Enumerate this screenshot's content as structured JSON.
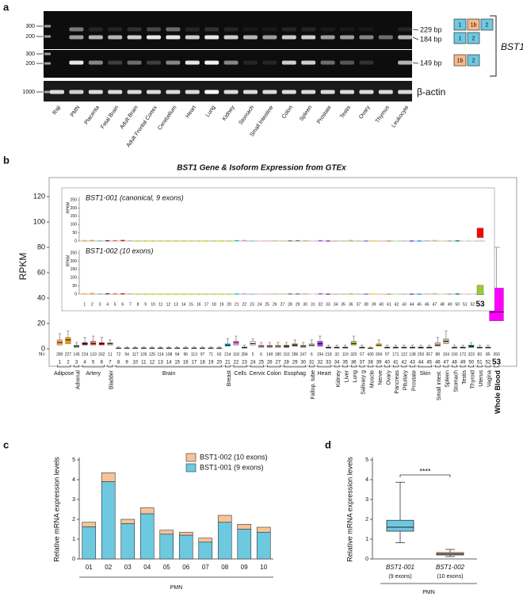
{
  "gel": {
    "panel_label": "a",
    "lanes": [
      "Raji",
      "PMN",
      "Placenta",
      "Fetal Brain",
      "Adult Brain",
      "Adult Frontal Cortex",
      "Cerebellum",
      "Heart",
      "Lung",
      "Kidney",
      "Stomach",
      "Small Intestine",
      "Colon",
      "Spleen",
      "Prostate",
      "Testis",
      "Ovary",
      "Thymus",
      "Leukocyte"
    ],
    "markers": [
      300,
      200,
      300,
      200,
      1000
    ],
    "band_labels": [
      "229 bp",
      "184 bp",
      "149 bp"
    ],
    "exons": [
      [
        "1",
        "1b",
        "2"
      ],
      [
        "1",
        "2"
      ],
      [
        "1b",
        "2"
      ]
    ],
    "gene": "BST1",
    "control": "β-actin"
  },
  "chart_data": [
    {
      "panel_label": "b",
      "type": "box",
      "title": "BST1 Gene & Isoform Expression from GTEx",
      "ylabel": "RPKM",
      "categories": [
        "1",
        "2",
        "3",
        "4",
        "5",
        "6",
        "7",
        "8",
        "9",
        "10",
        "11",
        "12",
        "13",
        "14",
        "15",
        "16",
        "17",
        "18",
        "19",
        "20",
        "21",
        "22",
        "23",
        "24",
        "25",
        "26",
        "27",
        "28",
        "29",
        "30",
        "31",
        "32",
        "33",
        "34",
        "35",
        "36",
        "37",
        "38",
        "39",
        "40",
        "41",
        "42",
        "43",
        "44",
        "45",
        "46",
        "47",
        "48",
        "49",
        "50",
        "51",
        "52",
        "53"
      ],
      "n_label": "N=",
      "n": [
        280,
        227,
        145,
        224,
        133,
        332,
        11,
        72,
        94,
        117,
        105,
        125,
        114,
        108,
        94,
        96,
        113,
        97,
        71,
        63,
        214,
        118,
        284,
        5,
        6,
        149,
        180,
        153,
        286,
        247,
        6,
        194,
        218,
        32,
        119,
        320,
        57,
        430,
        304,
        97,
        171,
        122,
        138,
        250,
        357,
        88,
        104,
        193,
        172,
        323,
        83,
        85,
        393
      ],
      "colors": [
        "#FFA54F",
        "#EE9A00",
        "#8FBC8F",
        "#8B1C62",
        "#EE6A50",
        "#FF0000",
        "#CDB79E",
        "#CDCD00",
        "#CDCD00",
        "#CDCD00",
        "#CDCD00",
        "#CDCD00",
        "#CDCD00",
        "#CDCD00",
        "#CDCD00",
        "#CDCD00",
        "#CDCD00",
        "#CDCD00",
        "#CDCD00",
        "#CDCD00",
        "#00CDCD",
        "#EE82EE",
        "#9AC0CD",
        "#EED5D2",
        "#FFB6C1",
        "#CDB79E",
        "#EEC591",
        "#8B7355",
        "#8B7355",
        "#CDAA7D",
        "#EED5D2",
        "#B23AEE",
        "#7A378B",
        "#CDB79E",
        "#CDB79E",
        "#9ACD32",
        "#CDB79E",
        "#7A67EE",
        "#FFD700",
        "#FFB6C1",
        "#CD9B1D",
        "#B4EEB4",
        "#BBBBBB",
        "#3A5FCD",
        "#1E90FF",
        "#CDB79E",
        "#CDB79E",
        "#FFD39B",
        "#A6A6A6",
        "#008B45",
        "#EED5D2",
        "#EED5D2",
        "#FF00FF"
      ],
      "median": [
        5,
        7,
        2,
        4,
        4,
        4,
        4,
        0.5,
        0.5,
        0.5,
        0.5,
        0.5,
        0.5,
        0.5,
        0.5,
        0.5,
        0.5,
        0.5,
        0.5,
        0.5,
        3,
        5,
        1,
        4,
        2,
        2,
        2,
        2,
        3,
        2,
        3,
        4,
        1,
        1,
        1,
        4,
        1,
        0.5,
        3,
        1,
        1,
        1,
        1,
        1,
        1,
        3,
        6,
        1,
        1,
        2,
        1,
        1,
        29
      ],
      "q1": [
        3,
        4,
        1,
        3,
        3,
        3,
        3,
        0.3,
        0.3,
        0.3,
        0.3,
        0.3,
        0.3,
        0.3,
        0.3,
        0.3,
        0.3,
        0.3,
        0.3,
        0.3,
        2,
        3,
        0.5,
        3,
        1,
        1,
        1,
        1,
        2,
        1,
        2,
        2,
        0.5,
        0.5,
        0.5,
        3,
        0.5,
        0.3,
        2,
        0.5,
        0.5,
        0.5,
        0.5,
        0.5,
        0.5,
        2,
        4,
        0.5,
        0.5,
        1,
        0.5,
        0.5,
        22
      ],
      "q3": [
        7,
        9,
        3,
        5,
        6,
        5,
        5,
        0.8,
        0.8,
        0.8,
        0.8,
        0.8,
        0.8,
        0.8,
        0.8,
        0.8,
        0.8,
        0.8,
        0.8,
        0.8,
        4,
        6,
        1.5,
        6,
        3,
        3,
        3,
        3,
        4,
        3,
        4,
        6,
        1.5,
        1.5,
        1.5,
        6,
        1.5,
        0.8,
        4,
        1.5,
        1.5,
        1.5,
        1.5,
        1.5,
        1.5,
        5,
        8,
        1.5,
        1.5,
        3,
        1.5,
        1.5,
        48
      ],
      "whisker_high": [
        12,
        14,
        5,
        9,
        10,
        9,
        7,
        1.5,
        1.5,
        1.5,
        1.5,
        1.5,
        1.5,
        1.5,
        1.5,
        1.5,
        1.5,
        1.5,
        1.5,
        1.5,
        8,
        10,
        3,
        8,
        5,
        5,
        5,
        5,
        7,
        5,
        7,
        10,
        3,
        3,
        3,
        10,
        3,
        1.5,
        7,
        3,
        3,
        3,
        3,
        3,
        3,
        9,
        14,
        3,
        3,
        5,
        3,
        3,
        80
      ],
      "ylim": [
        0,
        130
      ],
      "yticks": [
        0,
        20,
        40,
        60,
        80,
        100,
        120
      ],
      "groups": [
        {
          "label": "Adipose",
          "from": 1,
          "to": 2
        },
        {
          "label": "Adrenal",
          "from": 3,
          "to": 3
        },
        {
          "label": "Artery",
          "from": 4,
          "to": 6
        },
        {
          "label": "Bladder",
          "from": 7,
          "to": 7
        },
        {
          "label": "Brain",
          "from": 8,
          "to": 20
        },
        {
          "label": "Breast",
          "from": 21,
          "to": 21
        },
        {
          "label": "Cells",
          "from": 22,
          "to": 23
        },
        {
          "label": "Cervix",
          "from": 24,
          "to": 25
        },
        {
          "label": "Colon",
          "from": 26,
          "to": 27
        },
        {
          "label": "Esophag",
          "from": 28,
          "to": 30
        },
        {
          "label": "Fallop. tube",
          "from": 31,
          "to": 31
        },
        {
          "label": "Heart",
          "from": 32,
          "to": 33
        },
        {
          "label": "Kidney",
          "from": 34,
          "to": 34
        },
        {
          "label": "Liver",
          "from": 35,
          "to": 35
        },
        {
          "label": "Lung",
          "from": 36,
          "to": 36
        },
        {
          "label": "Salivary g",
          "from": 37,
          "to": 37
        },
        {
          "label": "Muscle",
          "from": 38,
          "to": 38
        },
        {
          "label": "Nerve",
          "from": 39,
          "to": 39
        },
        {
          "label": "Ovary",
          "from": 40,
          "to": 40
        },
        {
          "label": "Pancreas",
          "from": 41,
          "to": 41
        },
        {
          "label": "Pituitary",
          "from": 42,
          "to": 42
        },
        {
          "label": "Prostate",
          "from": 43,
          "to": 43
        },
        {
          "label": "Skin",
          "from": 44,
          "to": 45
        },
        {
          "label": "Small intest.",
          "from": 46,
          "to": 46
        },
        {
          "label": "Spleen",
          "from": 47,
          "to": 47
        },
        {
          "label": "Stomach",
          "from": 48,
          "to": 48
        },
        {
          "label": "Testis",
          "from": 49,
          "to": 49
        },
        {
          "label": "Thyroid",
          "from": 50,
          "to": 50
        },
        {
          "label": "Uterus",
          "from": 51,
          "to": 51
        },
        {
          "label": "Vagina",
          "from": 52,
          "to": 52
        },
        {
          "label": "Whole Blood",
          "from": 53,
          "to": 53
        }
      ],
      "insets": [
        {
          "title": "BST1-001 (canonical, 9 exons)",
          "ylabel": "RPKM",
          "ylim": [
            0,
            270
          ],
          "yticks": [
            0,
            50,
            100,
            150,
            200,
            250
          ],
          "values": [
            3,
            3,
            1,
            2,
            2,
            3,
            2,
            0,
            0,
            0,
            0,
            0,
            0,
            0,
            0,
            0,
            0,
            0,
            0,
            0,
            2,
            3,
            0,
            2,
            1,
            1,
            1,
            1,
            2,
            1,
            2,
            2,
            0,
            0,
            0,
            3,
            0,
            0,
            2,
            0,
            0,
            0,
            0,
            0,
            0,
            2,
            3,
            0,
            0,
            1,
            0,
            0,
            50
          ]
        },
        {
          "title": "BST1-002 (10 exons)",
          "ylabel": "RPKM",
          "ylim": [
            0,
            270
          ],
          "yticks": [
            0,
            50,
            100,
            150,
            200,
            250
          ],
          "values": [
            2,
            4,
            1,
            2,
            2,
            2,
            2,
            0,
            0,
            0,
            0,
            0,
            0,
            0,
            0,
            0,
            0,
            0,
            0,
            0,
            1,
            2,
            0,
            2,
            1,
            1,
            1,
            1,
            1,
            1,
            1,
            2,
            0,
            0,
            0,
            2,
            0,
            0,
            1,
            0,
            0,
            0,
            0,
            0,
            0,
            1,
            3,
            0,
            0,
            1,
            0,
            0,
            25
          ]
        }
      ]
    },
    {
      "panel_label": "c",
      "type": "stacked_bar",
      "ylabel": "Relative mRNA expression levels",
      "xlabel": "PMN",
      "categories": [
        "01",
        "02",
        "03",
        "04",
        "05",
        "06",
        "07",
        "08",
        "09",
        "10"
      ],
      "series": [
        {
          "name": "BST1-001 (9 exons)",
          "color": "#6cc9e0",
          "values": [
            1.62,
            3.9,
            1.78,
            2.28,
            1.25,
            1.2,
            0.85,
            1.85,
            1.5,
            1.35
          ]
        },
        {
          "name": "BST1-002 (10 exons)",
          "color": "#f7c39a",
          "values": [
            0.23,
            0.45,
            0.22,
            0.3,
            0.2,
            0.15,
            0.2,
            0.35,
            0.25,
            0.25
          ]
        }
      ],
      "ylim": [
        0,
        5
      ],
      "yticks": [
        0,
        1,
        2,
        3,
        4,
        5
      ]
    },
    {
      "panel_label": "d",
      "type": "box",
      "ylabel": "Relative mRNA expression levels",
      "xlabel": "PMN",
      "categories": [
        "BST1-001",
        "BST1-002"
      ],
      "sublabels": [
        "(9 exons)",
        "(10 exons)"
      ],
      "colors": [
        "#6cc9e0",
        "#f7c39a"
      ],
      "median": [
        1.6,
        0.25
      ],
      "q1": [
        1.4,
        0.2
      ],
      "q3": [
        1.95,
        0.32
      ],
      "whisker_low": [
        0.82,
        0.12
      ],
      "whisker_high": [
        3.87,
        0.48
      ],
      "ylim": [
        0,
        5
      ],
      "yticks": [
        0,
        1,
        2,
        3,
        4,
        5
      ],
      "significance": "****"
    }
  ]
}
